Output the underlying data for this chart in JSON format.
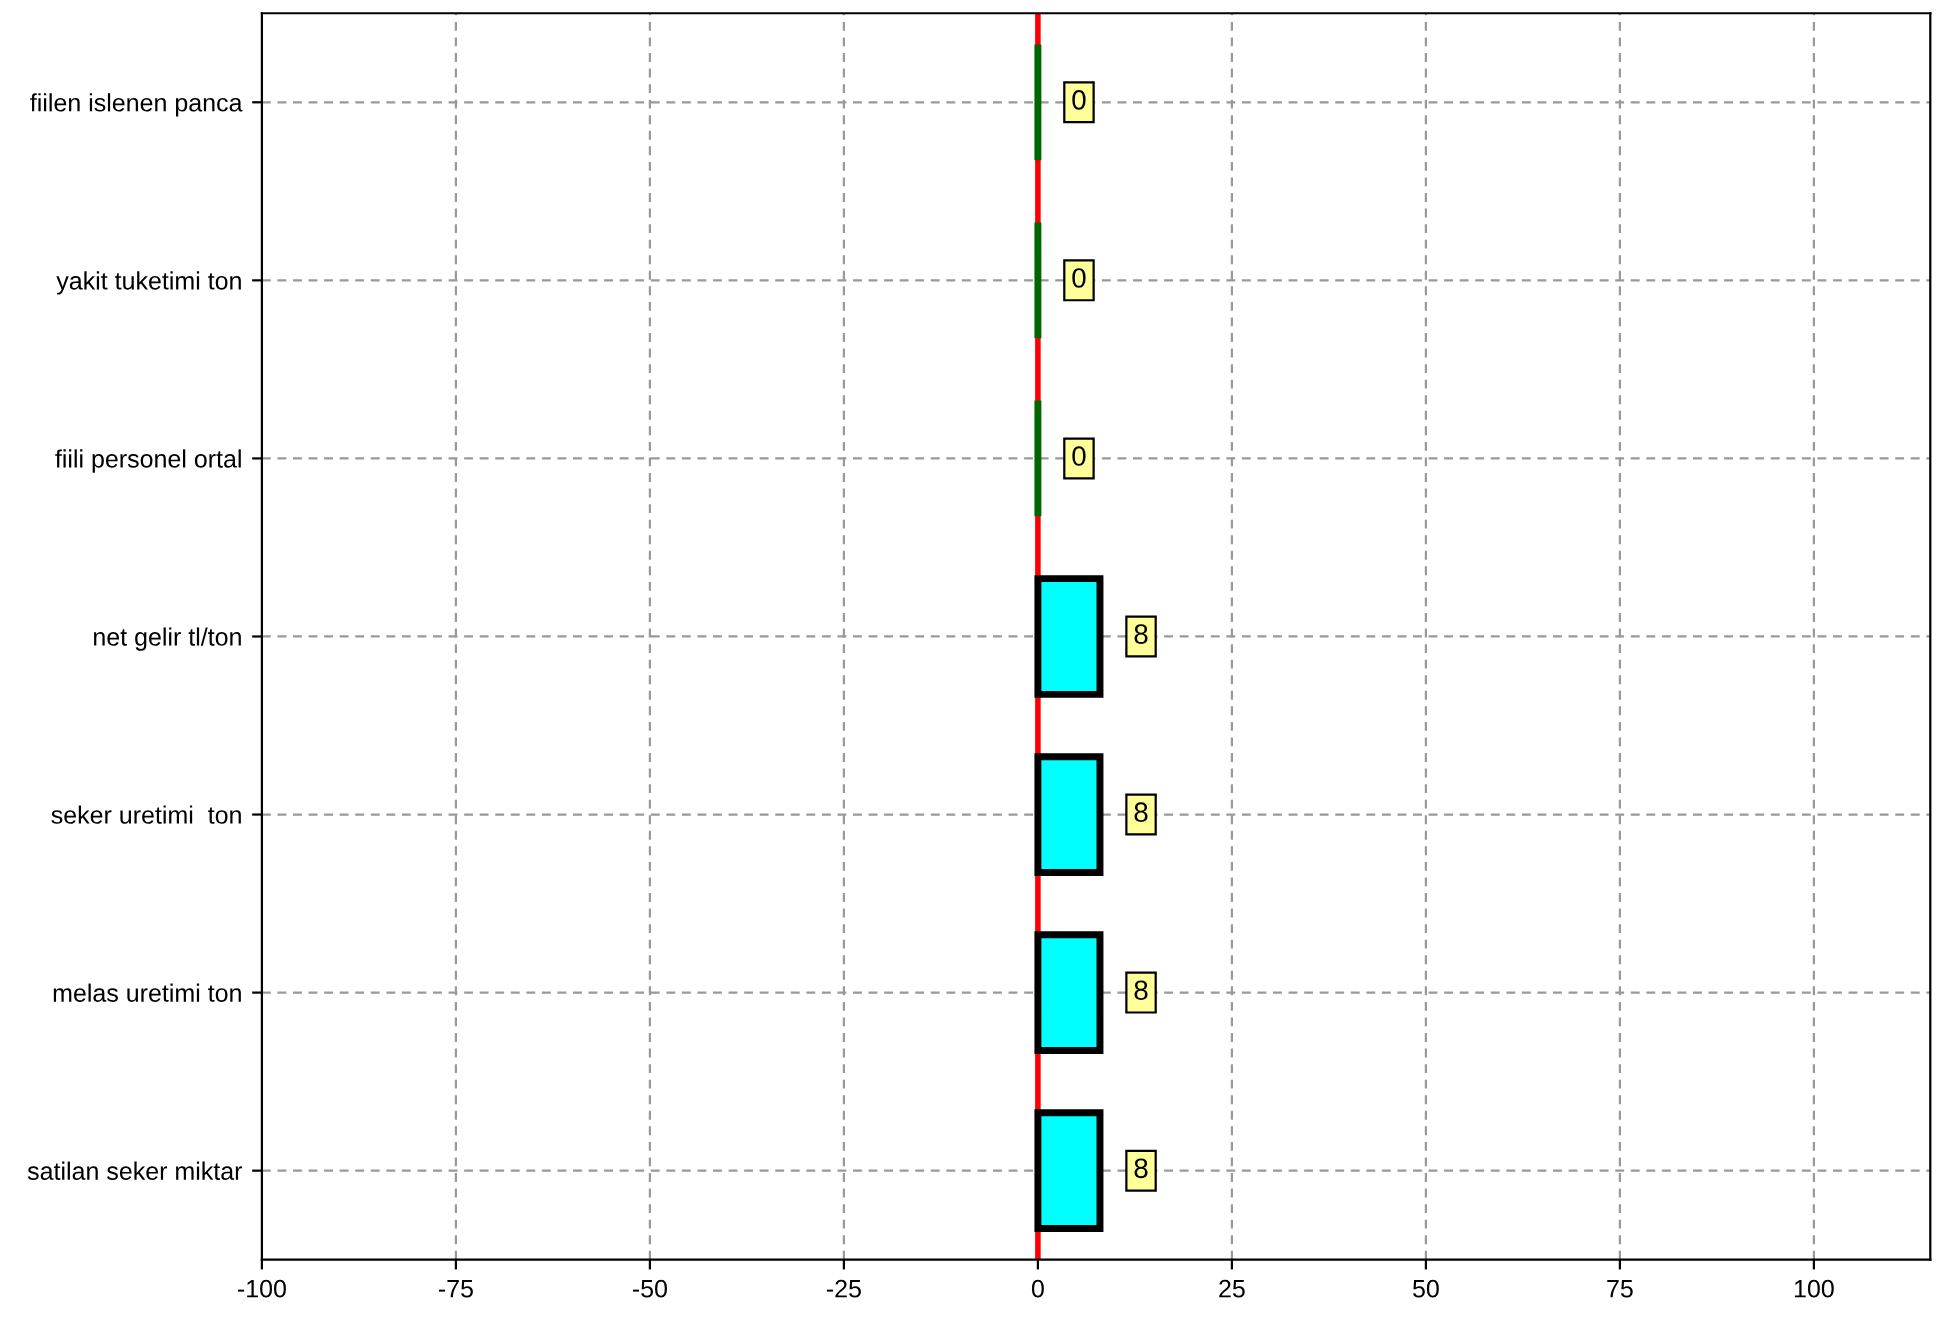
{
  "chart_data": {
    "type": "bar",
    "orientation": "horizontal",
    "categories": [
      "fiilen islenen panca",
      "yakit tuketimi ton",
      "fiili personel ortal",
      "net gelir tl/ton",
      "seker uretimi  ton",
      "melas uretimi ton",
      "satilan seker miktar"
    ],
    "values": [
      0,
      0,
      0,
      8,
      8,
      8,
      8
    ],
    "colors": [
      "#006600",
      "#006600",
      "#006600",
      "#00ffff",
      "#00ffff",
      "#00ffff",
      "#00ffff"
    ],
    "xlim": [
      -100,
      115
    ],
    "xticks": [
      -100,
      -75,
      -50,
      -25,
      0,
      25,
      50,
      75,
      100
    ],
    "grid": true,
    "data_labels": true,
    "ref_lines": [
      {
        "axis": "x",
        "value": 0,
        "color": "#ff0000"
      }
    ]
  }
}
